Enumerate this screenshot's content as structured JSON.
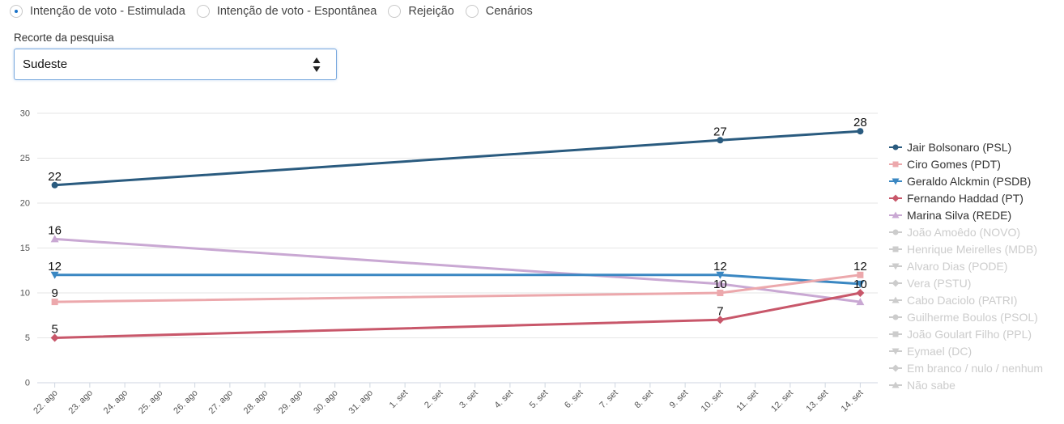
{
  "radio_options": [
    {
      "label": "Intenção de voto - Estimulada",
      "checked": true
    },
    {
      "label": "Intenção de voto - Espontânea",
      "checked": false
    },
    {
      "label": "Rejeição",
      "checked": false
    },
    {
      "label": "Cenários",
      "checked": false
    }
  ],
  "filter": {
    "label": "Recorte da pesquisa",
    "selected": "Sudeste"
  },
  "chart_data": {
    "type": "line",
    "title": "",
    "xlabel": "",
    "ylabel": "",
    "ylim": [
      0,
      30
    ],
    "yticks": [
      0,
      5,
      10,
      15,
      20,
      25,
      30
    ],
    "grid": true,
    "legend_position": "right",
    "x_dates": [
      "22. ago",
      "23. ago",
      "24. ago",
      "25. ago",
      "26. ago",
      "27. ago",
      "28. ago",
      "29. ago",
      "30. ago",
      "31. ago",
      "1. set",
      "2. set",
      "3. set",
      "4. set",
      "5. set",
      "6. set",
      "7. set",
      "8. set",
      "9. set",
      "10. set",
      "11. set",
      "12. set",
      "13. set",
      "14. set"
    ],
    "data_dates": [
      "22. ago",
      "10. set",
      "14. set"
    ],
    "series": [
      {
        "name": "Jair Bolsonaro (PSL)",
        "values": [
          22,
          27,
          28
        ],
        "color": "#2a5b7f",
        "marker": "circle",
        "visible": true
      },
      {
        "name": "Ciro Gomes (PDT)",
        "values": [
          9,
          10,
          12
        ],
        "color": "#eca8ac",
        "marker": "square",
        "visible": true
      },
      {
        "name": "Geraldo Alckmin (PSDB)",
        "values": [
          12,
          12,
          11
        ],
        "color": "#3a87c2",
        "marker": "triangle-down",
        "visible": true
      },
      {
        "name": "Fernando Haddad (PT)",
        "values": [
          5,
          7,
          10
        ],
        "color": "#c8576a",
        "marker": "diamond",
        "visible": true
      },
      {
        "name": "Marina Silva (REDE)",
        "values": [
          16,
          11,
          9
        ],
        "color": "#c9a8d3",
        "marker": "triangle",
        "visible": true
      },
      {
        "name": "João Amoêdo (NOVO)",
        "values": [],
        "color": "#cccccc",
        "marker": "circle",
        "visible": false
      },
      {
        "name": "Henrique Meirelles (MDB)",
        "values": [],
        "color": "#cccccc",
        "marker": "square",
        "visible": false
      },
      {
        "name": "Alvaro Dias (PODE)",
        "values": [],
        "color": "#cccccc",
        "marker": "triangle-down",
        "visible": false
      },
      {
        "name": "Vera (PSTU)",
        "values": [],
        "color": "#cccccc",
        "marker": "diamond",
        "visible": false
      },
      {
        "name": "Cabo Daciolo (PATRI)",
        "values": [],
        "color": "#cccccc",
        "marker": "triangle",
        "visible": false
      },
      {
        "name": "Guilherme Boulos (PSOL)",
        "values": [],
        "color": "#cccccc",
        "marker": "circle",
        "visible": false
      },
      {
        "name": "João Goulart Filho (PPL)",
        "values": [],
        "color": "#cccccc",
        "marker": "square",
        "visible": false
      },
      {
        "name": "Eymael (DC)",
        "values": [],
        "color": "#cccccc",
        "marker": "triangle-down",
        "visible": false
      },
      {
        "name": "Em branco / nulo / nenhum",
        "values": [],
        "color": "#cccccc",
        "marker": "diamond",
        "visible": false
      },
      {
        "name": "Não sabe",
        "values": [],
        "color": "#cccccc",
        "marker": "triangle",
        "visible": false
      }
    ],
    "data_labels": [
      {
        "date": "22. ago",
        "values": [
          22,
          16,
          12,
          9,
          5
        ]
      },
      {
        "date": "10. set",
        "values": [
          27,
          12,
          10,
          7
        ]
      },
      {
        "date": "14. set",
        "values": [
          28,
          12,
          10
        ]
      }
    ]
  }
}
